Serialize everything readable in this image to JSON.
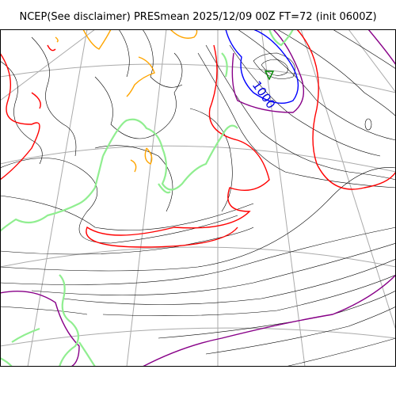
{
  "title": "NCEP(See disclaimer) PRESmean 2025/12/09 00Z FT=72 (init 0600Z)",
  "contour_labels": [
    {
      "text": "1000",
      "color": "#0000dd"
    }
  ],
  "colors": {
    "isobar_default": "#000000",
    "isobar_highlight_red": "#ff0000",
    "isobar_blue": "#0000ff",
    "isobar_purple": "#880088",
    "isobar_orange": "#ffa500",
    "coastline": "#90ee90",
    "graticule": "#aaaaaa",
    "low_marker": "#008800"
  },
  "chart_data": {
    "type": "contour-map",
    "variable": "PRESmean",
    "source": "NCEP",
    "valid": "2025/12/09 00Z",
    "forecast_hour": 72,
    "init": "0600Z",
    "labeled_isobars": [
      1000
    ],
    "features": [
      "coastline",
      "graticule",
      "isobars"
    ]
  }
}
